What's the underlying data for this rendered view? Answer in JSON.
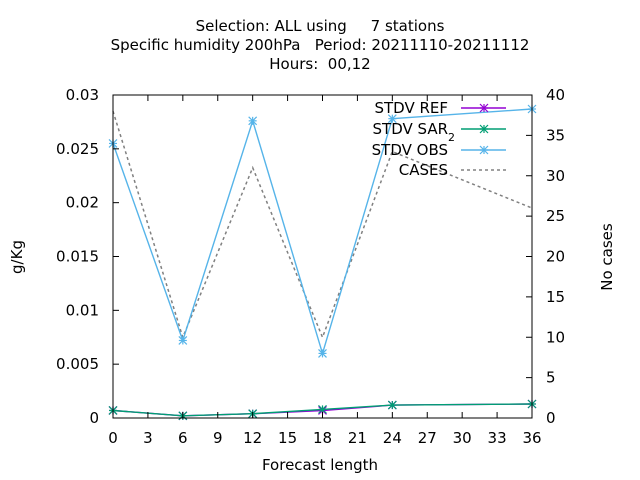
{
  "chart_data": {
    "type": "line",
    "title_lines": [
      "Selection: ALL using     7 stations",
      "Specific humidity 200hPa   Period: 20211110-20211112",
      "Hours:  00,12"
    ],
    "xlabel": "Forecast length",
    "ylabel": "g/Kg",
    "y2label": "No cases",
    "x": [
      0,
      6,
      12,
      18,
      24,
      36
    ],
    "xlim": [
      0,
      36
    ],
    "xticks": [
      0,
      3,
      6,
      9,
      12,
      15,
      18,
      21,
      24,
      27,
      30,
      33,
      36
    ],
    "ylim": [
      0,
      0.03
    ],
    "yticks": [
      "0",
      "0.005",
      "0.01",
      "0.015",
      "0.02",
      "0.025",
      "0.03"
    ],
    "y2lim": [
      0,
      40
    ],
    "y2ticks": [
      "0",
      "5",
      "10",
      "15",
      "20",
      "25",
      "30",
      "35",
      "40"
    ],
    "grid": false,
    "legend_position": "top-right",
    "series": [
      {
        "name": "STDV REF",
        "axis": "y",
        "color": "#9400d3",
        "style": "solid",
        "marker": "star",
        "values": [
          0.0007,
          0.0002,
          0.0004,
          0.0007,
          0.0012,
          0.0013
        ]
      },
      {
        "name": "STDV SAR",
        "name_subscript": "2",
        "axis": "y",
        "color": "#009e73",
        "style": "solid",
        "marker": "star",
        "values": [
          0.0007,
          0.0002,
          0.0004,
          0.0008,
          0.0012,
          0.0013
        ]
      },
      {
        "name": "STDV OBS",
        "axis": "y",
        "color": "#56b4e9",
        "style": "solid",
        "marker": "star",
        "values": [
          0.0255,
          0.0072,
          0.0276,
          0.006,
          0.0278,
          0.0287
        ]
      },
      {
        "name": "CASES",
        "axis": "y2",
        "color": "#808080",
        "style": "dashed",
        "marker": "none",
        "values": [
          38,
          10,
          31,
          10,
          33,
          26
        ]
      }
    ]
  }
}
